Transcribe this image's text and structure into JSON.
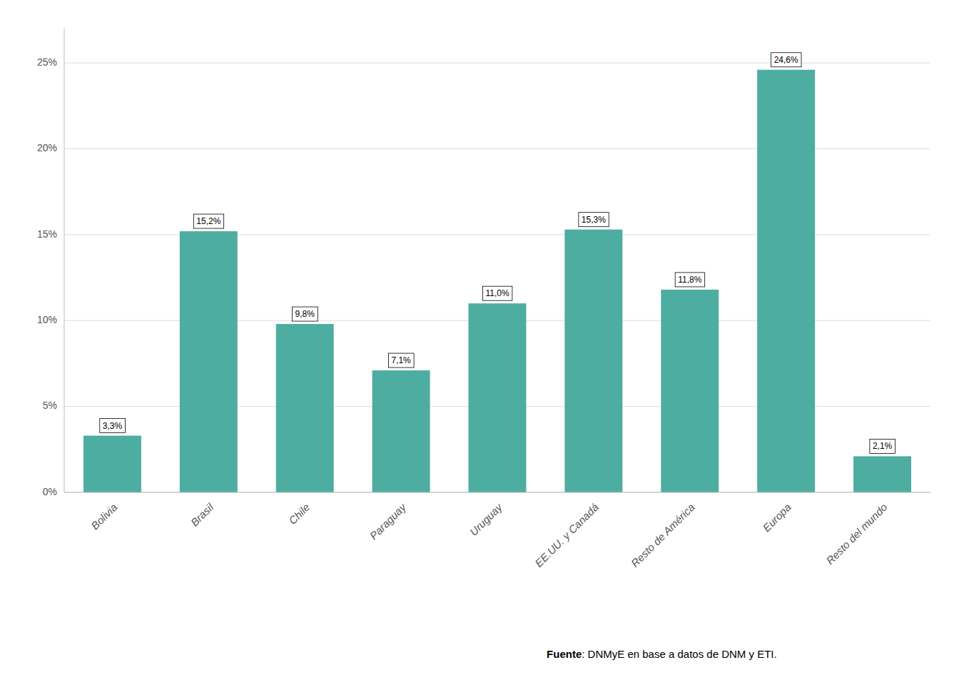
{
  "chart_data": {
    "type": "bar",
    "categories": [
      "Bolivia",
      "Brasil",
      "Chile",
      "Paraguay",
      "Uruguay",
      "EE.UU. y Canadá",
      "Resto de América",
      "Europa",
      "Resto del mundo"
    ],
    "values": [
      3.3,
      15.2,
      9.8,
      7.1,
      11.0,
      15.3,
      11.8,
      24.6,
      2.1
    ],
    "value_labels": [
      "3,3%",
      "15,2%",
      "9,8%",
      "7,1%",
      "11,0%",
      "15,3%",
      "11,8%",
      "24,6%",
      "2,1%"
    ],
    "color": "#4DADA0",
    "ylim": [
      0,
      27
    ],
    "yticks": [
      {
        "value": 0,
        "label": "0%"
      },
      {
        "value": 5,
        "label": "5%"
      },
      {
        "value": 10,
        "label": "10%"
      },
      {
        "value": 15,
        "label": "15%"
      },
      {
        "value": 20,
        "label": "20%"
      },
      {
        "value": 25,
        "label": "25%"
      }
    ],
    "grid": true,
    "data_labels": true,
    "annotations": [
      "Fuente",
      ": DNMyE en base a datos de DNM y ETI."
    ]
  }
}
